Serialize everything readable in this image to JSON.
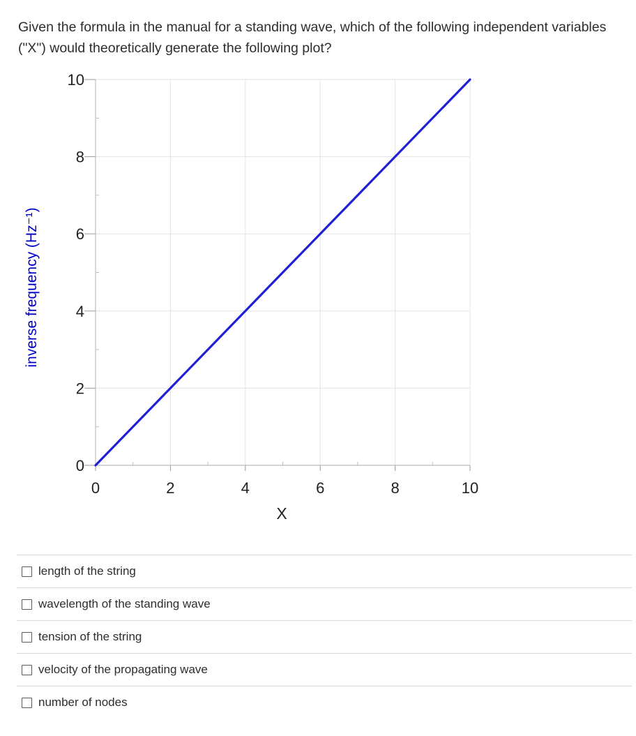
{
  "question": {
    "text": "Given the formula in the manual for a standing wave, which of the following independent variables (\"X\") would theoretically generate the following plot?"
  },
  "chart_data": {
    "type": "line",
    "xlabel": "X",
    "ylabel": "inverse frequency (Hz⁻¹)",
    "xlim": [
      0,
      10
    ],
    "ylim": [
      0,
      10
    ],
    "x_ticks": [
      "0",
      "2",
      "4",
      "6",
      "8",
      "10"
    ],
    "y_ticks": [
      "0",
      "2",
      "4",
      "6",
      "8",
      "10"
    ],
    "grid": true,
    "series": [
      {
        "x": [
          0,
          10
        ],
        "y": [
          0,
          10
        ],
        "color": "#1f1fd6"
      }
    ]
  },
  "answers": [
    {
      "label": "length of the string"
    },
    {
      "label": "wavelength of the standing wave"
    },
    {
      "label": "tension of the string"
    },
    {
      "label": "velocity of the propagating wave"
    },
    {
      "label": "number of nodes"
    }
  ]
}
